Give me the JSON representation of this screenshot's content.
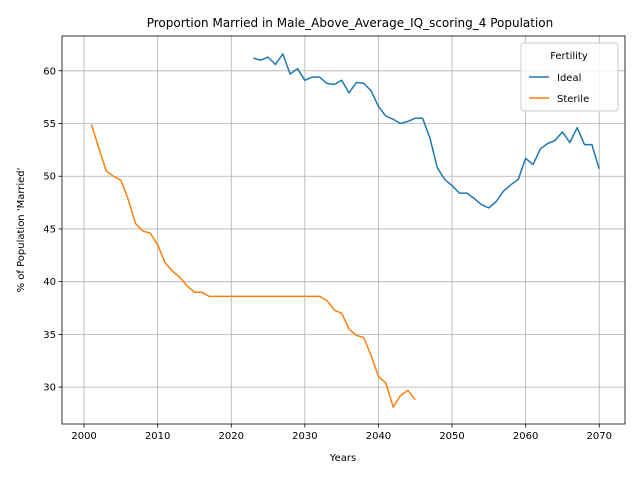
{
  "chart_data": {
    "type": "line",
    "title": "Proportion Married in Male_Above_Average_IQ_scoring_4 Population",
    "xlabel": "Years",
    "ylabel": "% of Population 'Married'",
    "xlim": [
      1997,
      2073.5
    ],
    "ylim": [
      26.5,
      63.3
    ],
    "xticks": [
      2000,
      2010,
      2020,
      2030,
      2040,
      2050,
      2060,
      2070
    ],
    "yticks": [
      30,
      35,
      40,
      45,
      50,
      55,
      60
    ],
    "grid": true,
    "legend": {
      "title": "Fertility",
      "position": "top-right"
    },
    "series": [
      {
        "name": "Ideal",
        "color": "#1f77b4",
        "x": [
          2023,
          2024,
          2025,
          2026,
          2027,
          2028,
          2029,
          2030,
          2031,
          2032,
          2033,
          2034,
          2035,
          2036,
          2037,
          2038,
          2039,
          2040,
          2041,
          2042,
          2043,
          2044,
          2045,
          2046,
          2047,
          2048,
          2049,
          2050,
          2051,
          2052,
          2053,
          2054,
          2055,
          2056,
          2057,
          2058,
          2059,
          2060,
          2061,
          2062,
          2063,
          2064,
          2065,
          2066,
          2067,
          2068,
          2069,
          2070
        ],
        "y": [
          61.2,
          61.0,
          61.3,
          60.6,
          61.6,
          59.7,
          60.2,
          59.1,
          59.4,
          59.4,
          58.8,
          58.7,
          59.1,
          57.9,
          58.9,
          58.8,
          58.1,
          56.6,
          55.7,
          55.4,
          55.0,
          55.2,
          55.5,
          55.5,
          53.6,
          50.8,
          49.7,
          49.1,
          48.4,
          48.4,
          47.9,
          47.3,
          47.0,
          47.6,
          48.6,
          49.2,
          49.7,
          51.7,
          51.1,
          52.6,
          53.1,
          53.4,
          54.2,
          53.2,
          54.6,
          53.0,
          53.0,
          50.7
        ]
      },
      {
        "name": "Sterile",
        "color": "#ff7f0e",
        "x": [
          2001,
          2002,
          2003,
          2004,
          2005,
          2006,
          2007,
          2008,
          2009,
          2010,
          2011,
          2012,
          2013,
          2014,
          2015,
          2016,
          2017,
          2018,
          2019,
          2020,
          2021,
          2022,
          2023,
          2024,
          2025,
          2026,
          2027,
          2028,
          2029,
          2030,
          2031,
          2032,
          2033,
          2034,
          2035,
          2036,
          2037,
          2038,
          2039,
          2040,
          2041,
          2042,
          2043,
          2044,
          2045
        ],
        "y": [
          54.9,
          52.7,
          50.5,
          50.0,
          49.6,
          47.8,
          45.5,
          44.8,
          44.6,
          43.5,
          41.8,
          41.0,
          40.4,
          39.6,
          39.0,
          39.0,
          38.6,
          38.6,
          38.6,
          38.6,
          38.6,
          38.6,
          38.6,
          38.6,
          38.6,
          38.6,
          38.6,
          38.6,
          38.6,
          38.6,
          38.6,
          38.6,
          38.2,
          37.3,
          37.0,
          35.5,
          34.9,
          34.7,
          33.0,
          31.0,
          30.4,
          28.1,
          29.2,
          29.7,
          28.8
        ]
      }
    ]
  }
}
